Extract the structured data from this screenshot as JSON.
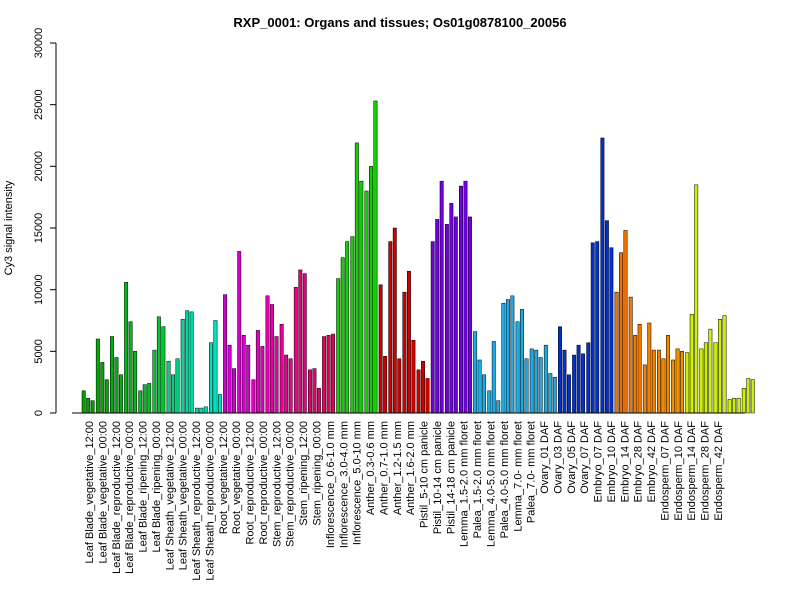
{
  "chart_data": {
    "type": "bar",
    "title": "RXP_0001: Organs and tissues; Os01g0878100_20056",
    "ylabel": "Cy3 signal intensity",
    "xlabel": "",
    "ylim": [
      0,
      30000
    ],
    "yticks": [
      0,
      5000,
      10000,
      15000,
      20000,
      25000,
      30000
    ],
    "tick_labels": [
      "Leaf Blade_vegetative_12:00",
      "Leaf Blade_vegetative_00:00",
      "Leaf Blade_reproductive_12:00",
      "Leaf Blade_reproductive_00:00",
      "Leaf Blade_ripening_12:00",
      "Leaf Blade_ripening_00:00",
      "Leaf Sheath_vegetative_12:00",
      "Leaf Sheath_vegetative_00:00",
      "Leaf Sheath_reproductive_12:00",
      "Leaf Sheath_reproductive_00:00",
      "Root_vegetative_12:00",
      "Root_vegetative_00:00",
      "Root_reproductive_12:00",
      "Root_reproductive_00:00",
      "Stem_reproductive_12:00",
      "Stem_reproductive_00:00",
      "Stem_ripening_12:00",
      "Stem_ripening_00:00",
      "Inflorescence_0.6-1.0 mm",
      "Inflorescence_3.0-4.0 mm",
      "Inflorescence_5.0-10 mm",
      "Anther_0.3-0.6 mm",
      "Anther_0.7-1.0 mm",
      "Anther_1.2-1.5 mm",
      "Anther_1.6-2.0 mm",
      "Pistil_5-10 cm panicle",
      "Pistil_10-14 cm panicle",
      "Pistil_14-18 cm panicle",
      "Lemma_1.5-2.0 mm floret",
      "Palea_1.5-2.0 mm floret",
      "Lemma_4.0-5.0 mm floret",
      "Palea_4.0-5.0 mm floret",
      "Lemma_7.0- mm floret",
      "Palea_7.0- mm floret",
      "Ovary_01 DAF",
      "Ovary_03 DAF",
      "Ovary_05 DAF",
      "Ovary_07 DAF",
      "Embryo_07 DAF",
      "Embryo_10 DAF",
      "Embryo_14 DAF",
      "Embryo_28 DAF",
      "Embryo_42 DAF",
      "Endosperm_07 DAF",
      "Endosperm_10 DAF",
      "Endosperm_14 DAF",
      "Endosperm_28 DAF",
      "Endosperm_42 DAF"
    ],
    "groups": [
      {
        "label": "Leaf Blade_vegetative_12:00",
        "color": "#00a000",
        "values": [
          1800,
          1200,
          1000
        ]
      },
      {
        "label": "Leaf Blade_vegetative_00:00",
        "color": "#00a800",
        "values": [
          6000,
          4100,
          2700
        ]
      },
      {
        "label": "Leaf Blade_reproductive_12:00",
        "color": "#00b010",
        "values": [
          6200,
          4500,
          3100
        ]
      },
      {
        "label": "Leaf Blade_reproductive_00:00",
        "color": "#00b818",
        "values": [
          10600,
          7400,
          5000
        ]
      },
      {
        "label": "Leaf Blade_ripening_12:00",
        "color": "#00c020",
        "values": [
          1800,
          2300,
          2400
        ]
      },
      {
        "label": "Leaf Blade_ripening_00:00",
        "color": "#00c830",
        "values": [
          5100,
          7800,
          7000
        ]
      },
      {
        "label": "Leaf Sheath_vegetative_12:00",
        "color": "#00d080",
        "values": [
          4200,
          3100,
          4400
        ]
      },
      {
        "label": "Leaf Sheath_vegetative_00:00",
        "color": "#00d8a0",
        "values": [
          7600,
          8300,
          8200
        ]
      },
      {
        "label": "Leaf Sheath_reproductive_12:00",
        "color": "#00e0b0",
        "values": [
          400,
          400,
          500
        ]
      },
      {
        "label": "Leaf Sheath_reproductive_00:00",
        "color": "#00e0c0",
        "values": [
          5700,
          7500,
          1500
        ]
      },
      {
        "label": "Root_vegetative_12:00",
        "color": "#d000d0",
        "values": [
          9600,
          5500,
          3600
        ]
      },
      {
        "label": "Root_vegetative_00:00",
        "color": "#d800d0",
        "values": [
          13100,
          6300,
          5500
        ]
      },
      {
        "label": "Root_reproductive_12:00",
        "color": "#e000c0",
        "values": [
          2700,
          6700,
          5400
        ]
      },
      {
        "label": "Root_reproductive_00:00",
        "color": "#e800b0",
        "values": [
          9500,
          8800,
          6200
        ]
      },
      {
        "label": "Stem_reproductive_12:00",
        "color": "#e80090",
        "values": [
          7200,
          4700,
          4400
        ]
      },
      {
        "label": "Stem_reproductive_00:00",
        "color": "#e80080",
        "values": [
          10200,
          11600,
          11300
        ]
      },
      {
        "label": "Stem_ripening_12:00",
        "color": "#e80070",
        "values": [
          3500,
          3600,
          2000
        ]
      },
      {
        "label": "Stem_ripening_00:00",
        "color": "#e80060",
        "values": [
          6200,
          6300,
          6400
        ]
      },
      {
        "label": "Inflorescence_0.6-1.0 mm",
        "color": "#10d000",
        "values": [
          10900,
          12600,
          13900
        ]
      },
      {
        "label": "Inflorescence_3.0-4.0 mm",
        "color": "#10d000",
        "values": [
          14300,
          21900,
          18800
        ]
      },
      {
        "label": "Inflorescence_5.0-10 mm",
        "color": "#10d000",
        "values": [
          18000,
          20000,
          25300
        ]
      },
      {
        "label": "Anther_0.3-0.6 mm",
        "color": "#d00000",
        "values": [
          10400,
          4600
        ]
      },
      {
        "label": "Anther_0.7-1.0 mm",
        "color": "#d00000",
        "values": [
          13900,
          15000,
          4400
        ]
      },
      {
        "label": "Anther_1.2-1.5 mm",
        "color": "#d00000",
        "values": [
          9800,
          11500,
          5900
        ]
      },
      {
        "label": "Anther_1.6-2.0 mm",
        "color": "#d00000",
        "values": [
          3500,
          4200,
          2800
        ]
      },
      {
        "label": "Pistil_5-10 cm panicle",
        "color": "#7000e0",
        "values": [
          13900,
          15700,
          18800
        ]
      },
      {
        "label": "Pistil_10-14 cm panicle",
        "color": "#7000e0",
        "values": [
          15300,
          17000,
          15900
        ]
      },
      {
        "label": "Pistil_14-18 cm panicle",
        "color": "#7000e0",
        "values": [
          18400,
          18800,
          15900
        ]
      },
      {
        "label": "Lemma_1.5-2.0 mm floret",
        "color": "#20a8e0",
        "values": [
          6600,
          4300,
          3100
        ]
      },
      {
        "label": "Palea_1.5-2.0 mm floret",
        "color": "#20a8e0",
        "values": [
          1800,
          5800,
          1000
        ]
      },
      {
        "label": "Lemma_4.0-5.0 mm floret",
        "color": "#20a8e0",
        "values": [
          8900,
          9200,
          9500
        ]
      },
      {
        "label": "Palea_4.0-5.0 mm floret",
        "color": "#20a8e0",
        "values": [
          7400,
          8400,
          4400
        ]
      },
      {
        "label": "Lemma_7.0- mm floret",
        "color": "#20a8e0",
        "values": [
          5200,
          5100,
          4500
        ]
      },
      {
        "label": "Palea_7.0- mm floret",
        "color": "#20a8e0",
        "values": [
          5500,
          3200,
          2900
        ]
      },
      {
        "label": "Ovary_01 DAF",
        "color": "#0030d0",
        "values": [
          7000,
          5100,
          3100
        ]
      },
      {
        "label": "Ovary_03 DAF",
        "color": "#0030d0",
        "values": [
          4700,
          5500,
          4800
        ]
      },
      {
        "label": "Ovary_05 DAF",
        "color": "#0030d0",
        "values": [
          5700,
          13800,
          13900
        ]
      },
      {
        "label": "Ovary_07 DAF",
        "color": "#0030d0",
        "values": [
          22300,
          15600,
          13400
        ]
      },
      {
        "label": "Embryo_07 DAF",
        "color": "#f07000",
        "values": [
          9800,
          13000,
          14800
        ]
      },
      {
        "label": "Embryo_10 DAF",
        "color": "#f07800",
        "values": [
          9400,
          6300,
          7200
        ]
      },
      {
        "label": "Embryo_14 DAF",
        "color": "#f08000",
        "values": [
          3900,
          7300,
          5100
        ]
      },
      {
        "label": "Embryo_28 DAF",
        "color": "#f08800",
        "values": [
          5100,
          4400,
          6300
        ]
      },
      {
        "label": "Embryo_42 DAF",
        "color": "#f09000",
        "values": [
          4300,
          5200,
          5000
        ]
      },
      {
        "label": "Endosperm_07 DAF",
        "color": "#d0f000",
        "values": [
          4900,
          8000,
          18500
        ]
      },
      {
        "label": "Endosperm_10 DAF",
        "color": "#d0f000",
        "values": [
          5200,
          5700,
          6800
        ]
      },
      {
        "label": "Endosperm_14 DAF",
        "color": "#d0f000",
        "values": [
          5700,
          7600,
          7900
        ]
      },
      {
        "label": "Endosperm_28 DAF",
        "color": "#d0f000",
        "values": [
          1100,
          1200,
          1200
        ]
      },
      {
        "label": "Endosperm_42 DAF",
        "color": "#d0f000",
        "values": [
          2000,
          2800,
          2700
        ]
      }
    ]
  }
}
